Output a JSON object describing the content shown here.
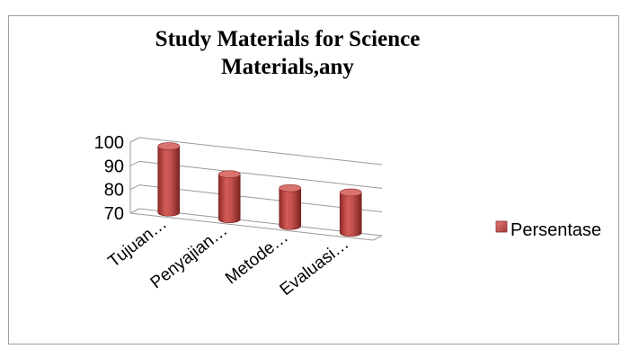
{
  "chart_data": {
    "type": "bar",
    "title": "Study Materials for Science\nMaterials,any",
    "categories": [
      "Tujuan…",
      "Penyajian…",
      "Metode…",
      "Evaluasi…"
    ],
    "series": [
      {
        "name": "Persentase",
        "values": [
          98,
          89,
          86,
          87
        ],
        "color": "#c0504d"
      }
    ],
    "ylim": [
      70,
      100
    ],
    "yticks": [
      "100",
      "90",
      "80",
      "70"
    ],
    "grid": true,
    "legend": "right"
  }
}
